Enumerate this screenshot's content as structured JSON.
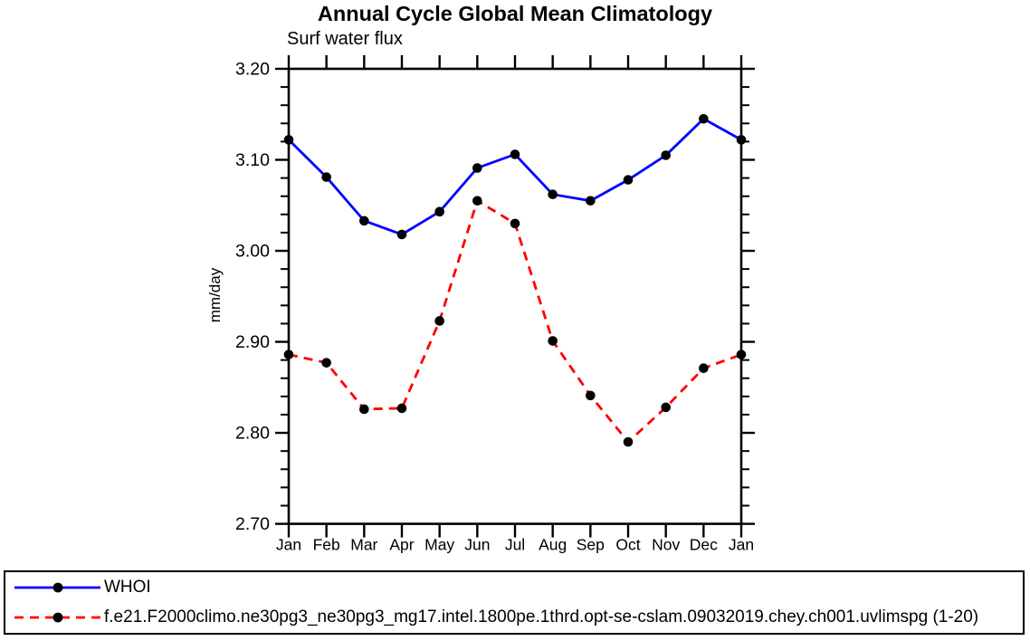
{
  "chart_data": {
    "type": "line",
    "title": "Annual Cycle Global Mean Climatology",
    "subtitle": "Surf water flux",
    "ylabel": "mm/day",
    "xlabel": "",
    "x_categories": [
      "Jan",
      "Feb",
      "Mar",
      "Apr",
      "May",
      "Jun",
      "Jul",
      "Aug",
      "Sep",
      "Oct",
      "Nov",
      "Dec",
      "Jan"
    ],
    "ylim": [
      2.7,
      3.2
    ],
    "y_major_ticks": [
      2.7,
      2.8,
      2.9,
      3.0,
      3.1,
      3.2
    ],
    "y_minor_step": 0.02,
    "grid": "off",
    "legend_position": "bottom-box",
    "marker": "filled-black-circle",
    "axis_color": "#000000",
    "marker_color": "#000000",
    "series": [
      {
        "name": "WHOI",
        "color": "#0000ff",
        "style": "solid",
        "values": [
          3.122,
          3.081,
          3.033,
          3.018,
          3.043,
          3.091,
          3.106,
          3.062,
          3.055,
          3.078,
          3.105,
          3.145,
          3.122
        ]
      },
      {
        "name": "f.e21.F2000climo.ne30pg3_ne30pg3_mg17.intel.1800pe.1thrd.opt-se-cslam.09032019.chey.ch001.uvlimspg (1-20)",
        "color": "#ff0000",
        "style": "dashed",
        "values": [
          2.886,
          2.877,
          2.826,
          2.827,
          2.923,
          3.055,
          3.03,
          2.901,
          2.841,
          2.79,
          2.828,
          2.871,
          2.886
        ]
      }
    ]
  }
}
